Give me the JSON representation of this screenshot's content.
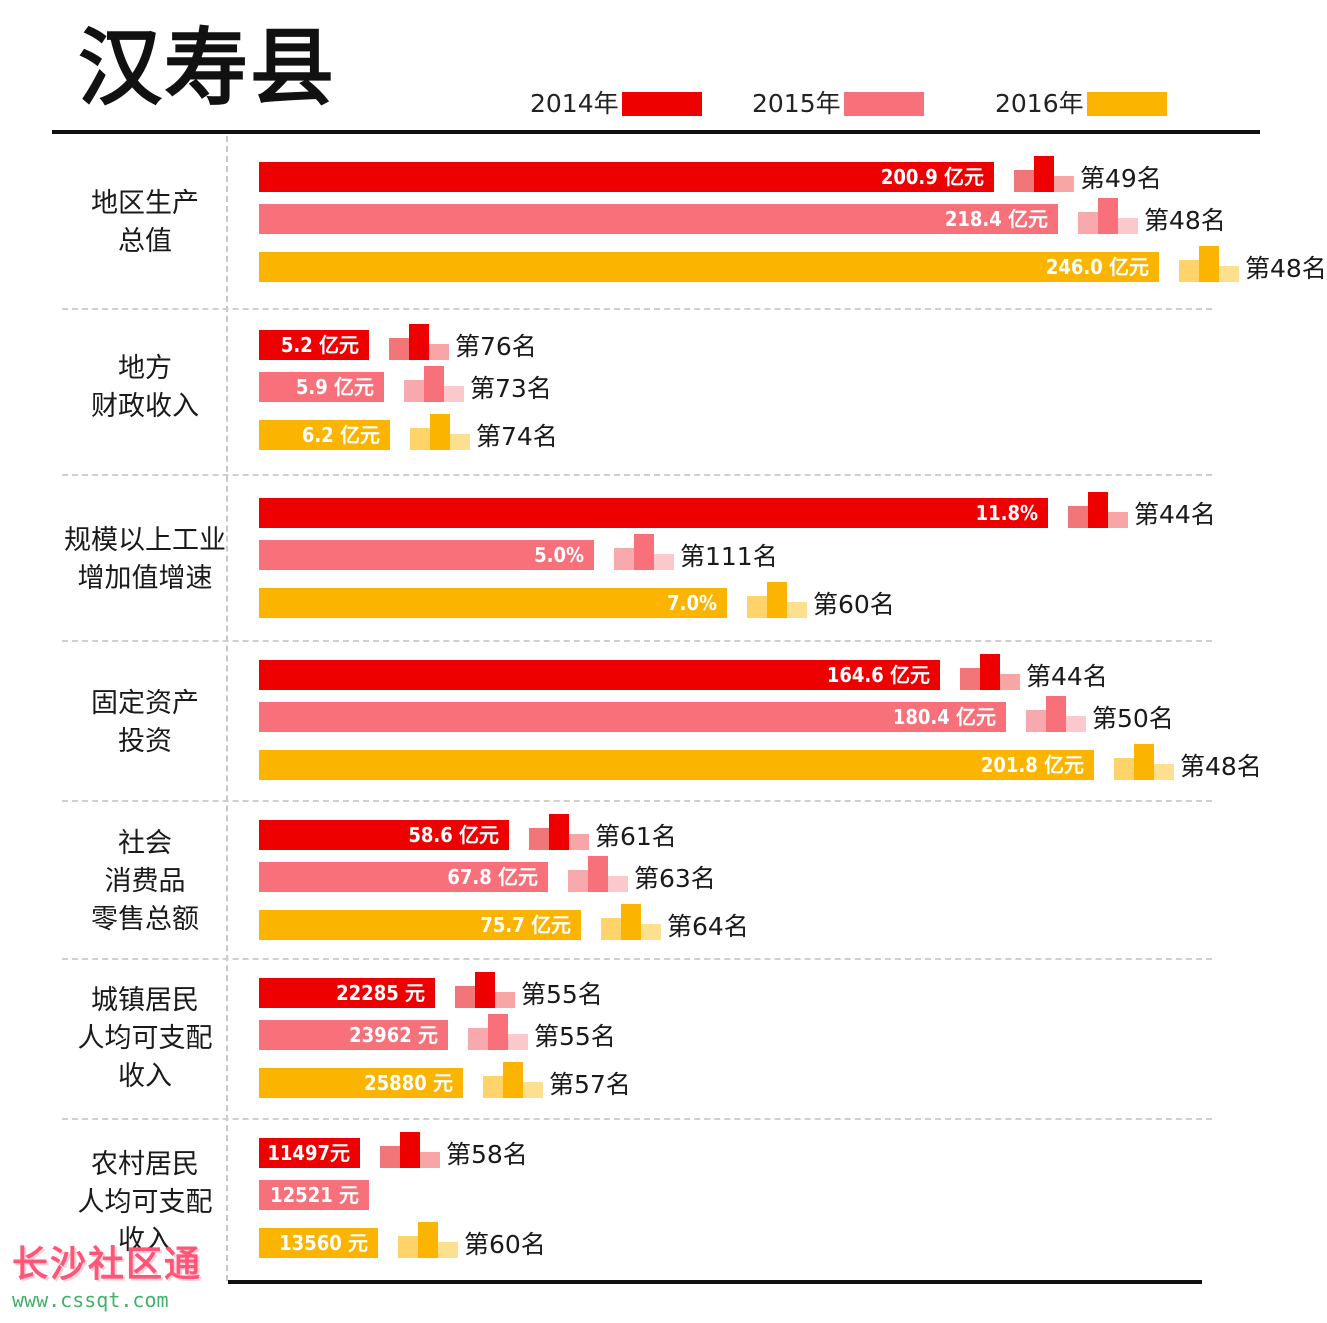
{
  "title": "汉寿县",
  "colors": {
    "2014": "#ee0000",
    "2015": "#f7707a",
    "2016": "#fbb400"
  },
  "rank_icon_colors": {
    "2014": [
      "#f27677",
      "#ee0000",
      "#f7a5a5"
    ],
    "2015": [
      "#f8a9ae",
      "#f7707a",
      "#fbc8cb"
    ],
    "2016": [
      "#fdd36a",
      "#fbb400",
      "#fde08f"
    ]
  },
  "watermark": {
    "name": "长沙社区通",
    "url": "www.cssqt.com"
  },
  "chart_data": {
    "type": "bar",
    "orientation": "horizontal",
    "title": "汉寿县",
    "legend": [
      "2014年",
      "2015年",
      "2016年"
    ],
    "legend_position": "top-right",
    "grid": false,
    "groups": [
      {
        "label_lines": [
          "地区生产",
          "总值"
        ],
        "unit": "亿元",
        "series": [
          {
            "year": "2014",
            "value": 200.9,
            "value_label": "200.9 亿元",
            "rank": "第49名"
          },
          {
            "year": "2015",
            "value": 218.4,
            "value_label": "218.4 亿元",
            "rank": "第48名"
          },
          {
            "year": "2016",
            "value": 246.0,
            "value_label": "246.0 亿元",
            "rank": "第48名"
          }
        ]
      },
      {
        "label_lines": [
          "地方",
          "财政收入"
        ],
        "unit": "亿元",
        "series": [
          {
            "year": "2014",
            "value": 5.2,
            "value_label": "5.2 亿元",
            "rank": "第76名"
          },
          {
            "year": "2015",
            "value": 5.9,
            "value_label": "5.9 亿元",
            "rank": "第73名"
          },
          {
            "year": "2016",
            "value": 6.2,
            "value_label": "6.2 亿元",
            "rank": "第74名"
          }
        ]
      },
      {
        "label_lines": [
          "规模以上工业",
          "增加值增速"
        ],
        "unit": "%",
        "series": [
          {
            "year": "2014",
            "value": 11.8,
            "value_label": "11.8%",
            "rank": "第44名"
          },
          {
            "year": "2015",
            "value": 5.0,
            "value_label": "5.0%",
            "rank": "第111名"
          },
          {
            "year": "2016",
            "value": 7.0,
            "value_label": "7.0%",
            "rank": "第60名"
          }
        ]
      },
      {
        "label_lines": [
          "固定资产",
          "投资"
        ],
        "unit": "亿元",
        "series": [
          {
            "year": "2014",
            "value": 164.6,
            "value_label": "164.6 亿元",
            "rank": "第44名"
          },
          {
            "year": "2015",
            "value": 180.4,
            "value_label": "180.4 亿元",
            "rank": "第50名"
          },
          {
            "year": "2016",
            "value": 201.8,
            "value_label": "201.8 亿元",
            "rank": "第48名"
          }
        ]
      },
      {
        "label_lines": [
          "社会",
          "消费品",
          "零售总额"
        ],
        "unit": "亿元",
        "series": [
          {
            "year": "2014",
            "value": 58.6,
            "value_label": "58.6 亿元",
            "rank": "第61名"
          },
          {
            "year": "2015",
            "value": 67.8,
            "value_label": "67.8 亿元",
            "rank": "第63名"
          },
          {
            "year": "2016",
            "value": 75.7,
            "value_label": "75.7 亿元",
            "rank": "第64名"
          }
        ]
      },
      {
        "label_lines": [
          "城镇居民",
          "人均可支配",
          "收入"
        ],
        "unit": "元",
        "series": [
          {
            "year": "2014",
            "value": 22285,
            "value_label": "22285 元",
            "rank": "第55名"
          },
          {
            "year": "2015",
            "value": 23962,
            "value_label": "23962 元",
            "rank": "第55名"
          },
          {
            "year": "2016",
            "value": 25880,
            "value_label": "25880 元",
            "rank": "第57名"
          }
        ]
      },
      {
        "label_lines": [
          "农村居民",
          "人均可支配",
          "收入"
        ],
        "unit": "元",
        "series": [
          {
            "year": "2014",
            "value": 11497,
            "value_label": "11497元",
            "rank": "第58名"
          },
          {
            "year": "2015",
            "value": 12521,
            "value_label": "12521 元",
            "rank": null
          },
          {
            "year": "2016",
            "value": 13560,
            "value_label": "13560 元",
            "rank": "第60名"
          }
        ]
      }
    ]
  }
}
